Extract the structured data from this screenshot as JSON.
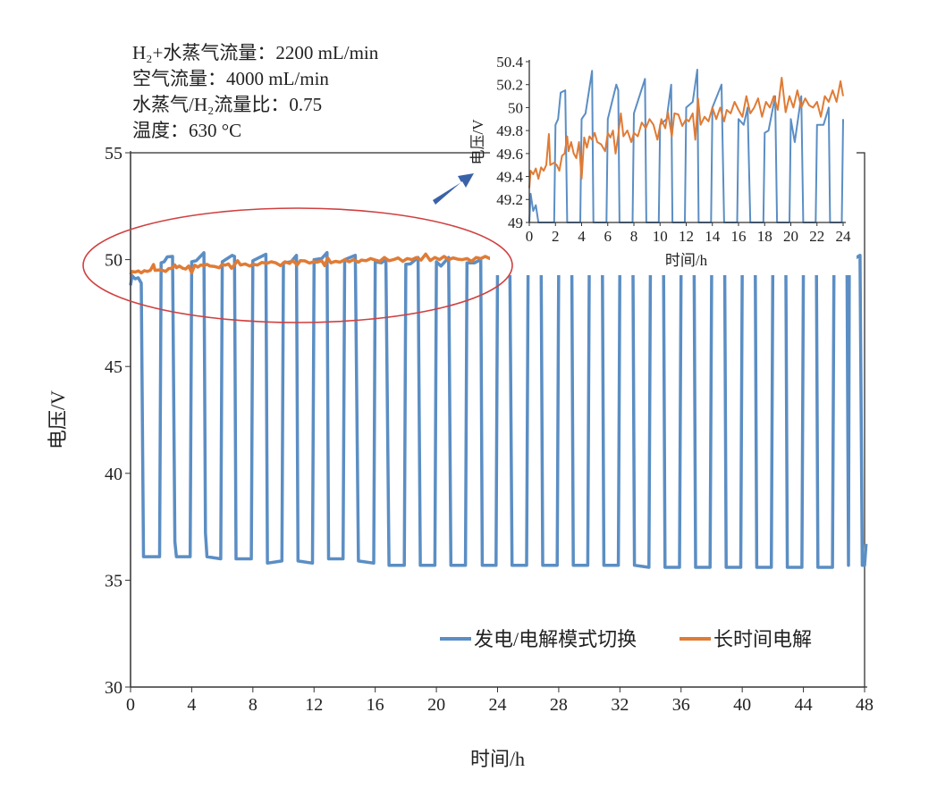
{
  "chart_data": [
    {
      "type": "line",
      "name": "main",
      "xlabel": "时间/h",
      "ylabel": "电压/V",
      "xlim": [
        0,
        48
      ],
      "ylim": [
        30,
        55
      ],
      "xticks": [
        0,
        4,
        8,
        12,
        16,
        20,
        24,
        28,
        32,
        36,
        40,
        44,
        48
      ],
      "yticks": [
        30,
        35,
        40,
        45,
        50,
        55
      ],
      "grid": false,
      "legend_position": "bottom-right",
      "annotations": [
        "H₂+水蒸气流量：2200 mL/min",
        "空气流量：4000 mL/min",
        "水蒸气/H₂流量比：0.75",
        "温度：630 °C"
      ],
      "series": [
        {
          "name": "发电/电解模式切换",
          "color": "#5b8ec4",
          "points": [
            [
              0,
              48.8
            ],
            [
              0.1,
              49.25
            ],
            [
              0.3,
              49.1
            ],
            [
              0.5,
              49.15
            ],
            [
              0.7,
              48.9
            ],
            [
              0.85,
              36.1
            ],
            [
              1.9,
              36.1
            ],
            [
              2.0,
              49.85
            ],
            [
              2.2,
              49.9
            ],
            [
              2.4,
              50.13
            ],
            [
              2.75,
              50.15
            ],
            [
              2.9,
              36.8
            ],
            [
              3.0,
              36.1
            ],
            [
              3.9,
              36.1
            ],
            [
              4.0,
              49.9
            ],
            [
              4.3,
              49.95
            ],
            [
              4.8,
              50.32
            ],
            [
              4.9,
              37.2
            ],
            [
              5.0,
              36.1
            ],
            [
              5.9,
              36.0
            ],
            [
              6.0,
              49.9
            ],
            [
              6.65,
              50.2
            ],
            [
              6.8,
              50.15
            ],
            [
              6.9,
              36.0
            ],
            [
              7.9,
              36.0
            ],
            [
              8.0,
              49.95
            ],
            [
              8.85,
              50.25
            ],
            [
              8.95,
              35.8
            ],
            [
              9.9,
              35.9
            ],
            [
              10.0,
              49.85
            ],
            [
              10.5,
              49.9
            ],
            [
              10.85,
              50.2
            ],
            [
              10.95,
              35.9
            ],
            [
              11.9,
              35.8
            ],
            [
              12.0,
              50.0
            ],
            [
              12.5,
              50.05
            ],
            [
              12.85,
              50.33
            ],
            [
              12.95,
              36.0
            ],
            [
              13.9,
              36.0
            ],
            [
              14.0,
              50.0
            ],
            [
              14.7,
              50.2
            ],
            [
              14.9,
              35.9
            ],
            [
              15.9,
              35.8
            ],
            [
              16.0,
              49.9
            ],
            [
              16.4,
              49.85
            ],
            [
              16.7,
              50.0
            ],
            [
              16.9,
              35.7
            ],
            [
              17.9,
              35.7
            ],
            [
              18.0,
              49.78
            ],
            [
              18.3,
              49.8
            ],
            [
              18.8,
              50.1
            ],
            [
              18.95,
              35.7
            ],
            [
              19.9,
              35.7
            ],
            [
              20.0,
              49.9
            ],
            [
              20.3,
              49.7
            ],
            [
              20.8,
              50.1
            ],
            [
              20.95,
              35.7
            ],
            [
              21.9,
              35.7
            ],
            [
              22.0,
              49.85
            ],
            [
              22.5,
              49.85
            ],
            [
              22.9,
              50.0
            ],
            [
              23.0,
              35.7
            ],
            [
              23.9,
              35.7
            ],
            [
              24.0,
              49.9
            ],
            [
              24.8,
              50.1
            ],
            [
              24.95,
              35.7
            ],
            [
              25.9,
              35.7
            ],
            [
              26.0,
              50.0
            ],
            [
              26.85,
              50.2
            ],
            [
              26.95,
              35.7
            ],
            [
              27.9,
              35.7
            ],
            [
              28.0,
              49.9
            ],
            [
              28.85,
              50.2
            ],
            [
              28.95,
              35.7
            ],
            [
              29.9,
              35.7
            ],
            [
              30.0,
              50.0
            ],
            [
              30.85,
              50.3
            ],
            [
              30.95,
              35.7
            ],
            [
              31.9,
              35.7
            ],
            [
              32.0,
              49.9
            ],
            [
              32.85,
              50.2
            ],
            [
              32.95,
              35.7
            ],
            [
              33.9,
              35.6
            ],
            [
              34.0,
              50.0
            ],
            [
              34.85,
              50.2
            ],
            [
              34.95,
              35.6
            ],
            [
              35.9,
              35.6
            ],
            [
              36.0,
              49.9
            ],
            [
              36.85,
              50.2
            ],
            [
              36.95,
              35.6
            ],
            [
              37.9,
              35.6
            ],
            [
              38.0,
              49.8
            ],
            [
              38.85,
              50.1
            ],
            [
              38.95,
              35.6
            ],
            [
              39.9,
              35.6
            ],
            [
              40.0,
              49.9
            ],
            [
              40.85,
              50.1
            ],
            [
              40.95,
              35.6
            ],
            [
              41.9,
              35.6
            ],
            [
              42.0,
              50.0
            ],
            [
              42.85,
              50.2
            ],
            [
              42.95,
              35.6
            ],
            [
              43.9,
              35.6
            ],
            [
              44.0,
              49.8
            ],
            [
              44.85,
              50.1
            ],
            [
              44.95,
              35.6
            ],
            [
              45.9,
              35.6
            ],
            [
              46.0,
              50.0
            ],
            [
              46.85,
              50.2
            ],
            [
              46.95,
              35.7
            ],
            [
              47.0,
              49.9
            ],
            [
              47.7,
              50.2
            ],
            [
              47.85,
              35.7
            ],
            [
              48.0,
              35.7
            ],
            [
              48.1,
              36.7
            ]
          ]
        },
        {
          "name": "长时间电解",
          "color": "#e07b35",
          "points": [
            [
              0,
              49.3
            ],
            [
              0.1,
              49.45
            ],
            [
              0.3,
              49.42
            ],
            [
              0.5,
              49.47
            ],
            [
              0.7,
              49.38
            ],
            [
              0.9,
              49.48
            ],
            [
              1.1,
              49.45
            ],
            [
              1.3,
              49.5
            ],
            [
              1.5,
              49.77
            ],
            [
              1.6,
              49.5
            ],
            [
              1.9,
              49.52
            ],
            [
              2.1,
              49.5
            ],
            [
              2.3,
              49.45
            ],
            [
              2.5,
              49.58
            ],
            [
              2.7,
              49.6
            ],
            [
              2.9,
              49.75
            ],
            [
              3.0,
              49.62
            ],
            [
              3.2,
              49.7
            ],
            [
              3.4,
              49.6
            ],
            [
              3.6,
              49.56
            ],
            [
              3.8,
              49.7
            ],
            [
              4.0,
              49.38
            ],
            [
              4.2,
              49.74
            ],
            [
              4.4,
              49.65
            ],
            [
              4.6,
              49.75
            ],
            [
              4.8,
              49.72
            ],
            [
              5.0,
              49.78
            ],
            [
              5.2,
              49.7
            ],
            [
              5.5,
              49.68
            ],
            [
              5.8,
              49.62
            ],
            [
              6.0,
              49.78
            ],
            [
              6.2,
              49.74
            ],
            [
              6.4,
              49.8
            ],
            [
              6.6,
              49.6
            ],
            [
              6.8,
              49.76
            ],
            [
              7.0,
              49.95
            ],
            [
              7.2,
              49.75
            ],
            [
              7.5,
              49.8
            ],
            [
              7.8,
              49.7
            ],
            [
              8.0,
              49.78
            ],
            [
              8.3,
              49.75
            ],
            [
              8.6,
              49.87
            ],
            [
              8.9,
              49.82
            ],
            [
              9.2,
              49.9
            ],
            [
              9.5,
              49.85
            ],
            [
              9.8,
              49.72
            ],
            [
              10.1,
              49.9
            ],
            [
              10.4,
              49.82
            ],
            [
              10.6,
              49.96
            ],
            [
              10.9,
              49.75
            ],
            [
              11.1,
              49.95
            ],
            [
              11.4,
              49.94
            ],
            [
              11.7,
              49.84
            ],
            [
              12.0,
              49.9
            ],
            [
              12.2,
              49.88
            ],
            [
              12.5,
              49.95
            ],
            [
              12.7,
              49.72
            ],
            [
              12.9,
              50.08
            ],
            [
              13.1,
              49.85
            ],
            [
              13.4,
              49.92
            ],
            [
              13.7,
              49.88
            ],
            [
              14.0,
              50.0
            ],
            [
              14.3,
              49.9
            ],
            [
              14.6,
              50.0
            ],
            [
              14.9,
              49.88
            ],
            [
              15.1,
              49.98
            ],
            [
              15.4,
              49.95
            ],
            [
              15.7,
              50.05
            ],
            [
              16.0,
              49.98
            ],
            [
              16.3,
              49.92
            ],
            [
              16.6,
              50.1
            ],
            [
              16.9,
              49.95
            ],
            [
              17.2,
              50.0
            ],
            [
              17.5,
              50.08
            ],
            [
              17.8,
              49.92
            ],
            [
              18.1,
              50.05
            ],
            [
              18.4,
              50.0
            ],
            [
              18.7,
              50.1
            ],
            [
              19.0,
              49.98
            ],
            [
              19.3,
              50.26
            ],
            [
              19.6,
              49.96
            ],
            [
              19.9,
              50.1
            ],
            [
              20.2,
              50.0
            ],
            [
              20.5,
              50.15
            ],
            [
              20.8,
              50.0
            ],
            [
              21.1,
              50.08
            ],
            [
              21.4,
              50.02
            ],
            [
              21.7,
              50.0
            ],
            [
              22.0,
              50.05
            ],
            [
              22.3,
              49.92
            ],
            [
              22.6,
              50.1
            ],
            [
              22.9,
              50.05
            ],
            [
              23.2,
              50.15
            ],
            [
              23.5,
              50.05
            ],
            [
              23.8,
              50.23
            ],
            [
              24.0,
              50.1
            ]
          ]
        }
      ]
    },
    {
      "type": "line",
      "name": "inset",
      "xlabel": "时间/h",
      "ylabel": "电压/V",
      "xlim": [
        0,
        24
      ],
      "ylim": [
        49,
        50.4
      ],
      "xticks": [
        0,
        2,
        4,
        6,
        8,
        10,
        12,
        14,
        16,
        18,
        20,
        22,
        24
      ],
      "yticks": [
        49,
        49.2,
        49.4,
        49.6,
        49.8,
        50,
        50.2,
        50.4
      ],
      "ytick_labels": [
        "49",
        "49.2",
        "49.4",
        "49.6",
        "49.8",
        "50",
        "50.2",
        "50.4"
      ],
      "series_source": "same as main, 0–24 h"
    }
  ]
}
